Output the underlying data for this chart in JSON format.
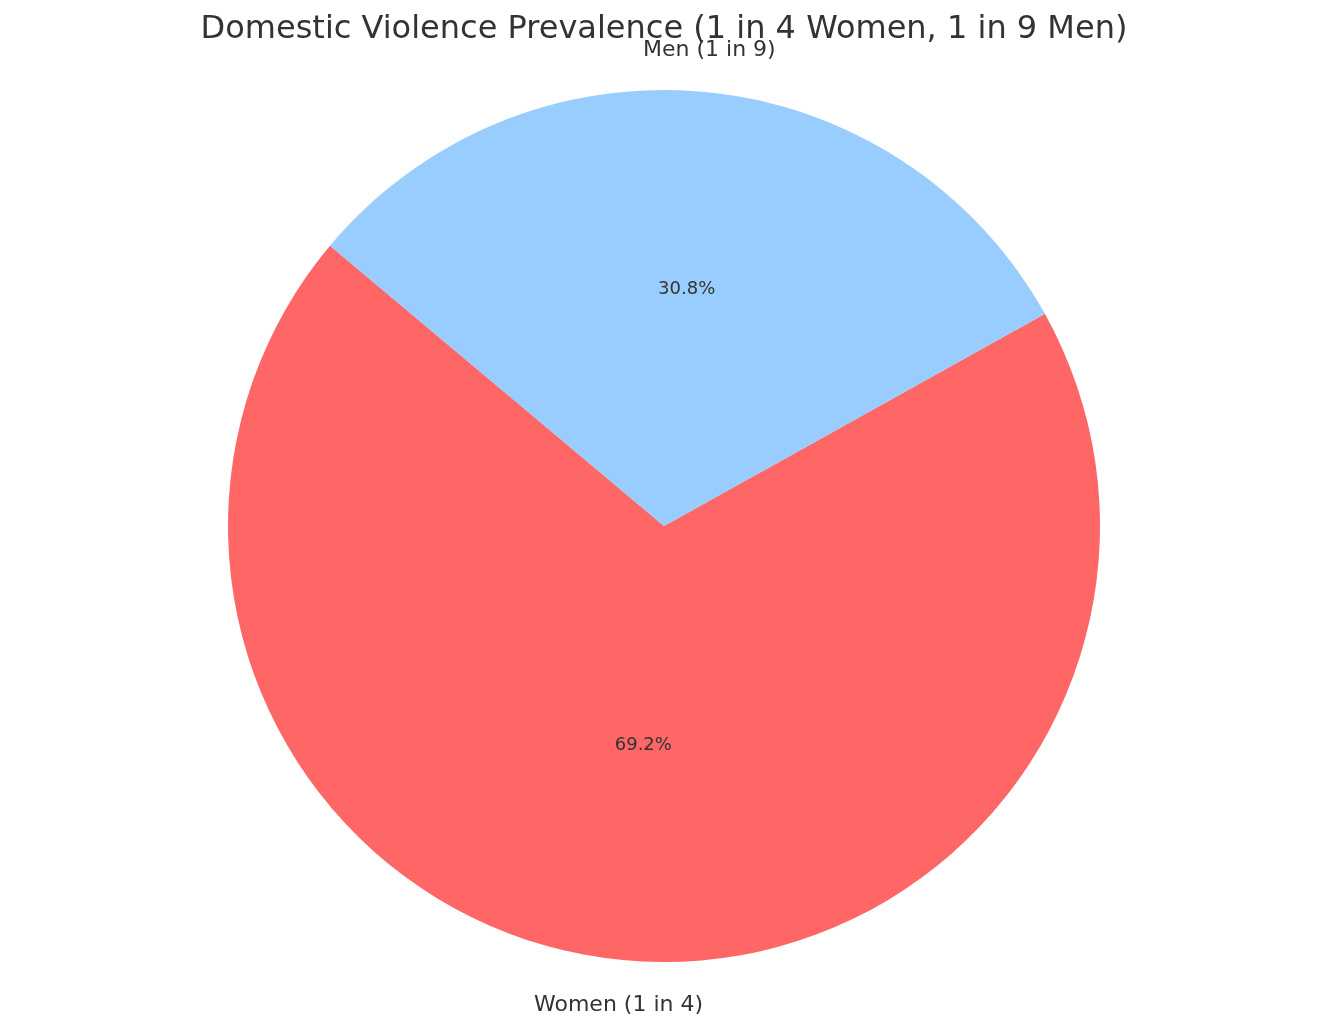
{
  "chart_data": {
    "type": "pie",
    "title": "Domestic Violence Prevalence (1 in 4 Women, 1 in 9 Men)",
    "categories": [
      "Women (1 in 4)",
      "Men (1 in 9)"
    ],
    "values": [
      69.2,
      30.8
    ],
    "value_labels": [
      "69.2%",
      "30.8%"
    ],
    "colors": [
      "#ff6666",
      "#99ccff"
    ],
    "legend": false
  }
}
